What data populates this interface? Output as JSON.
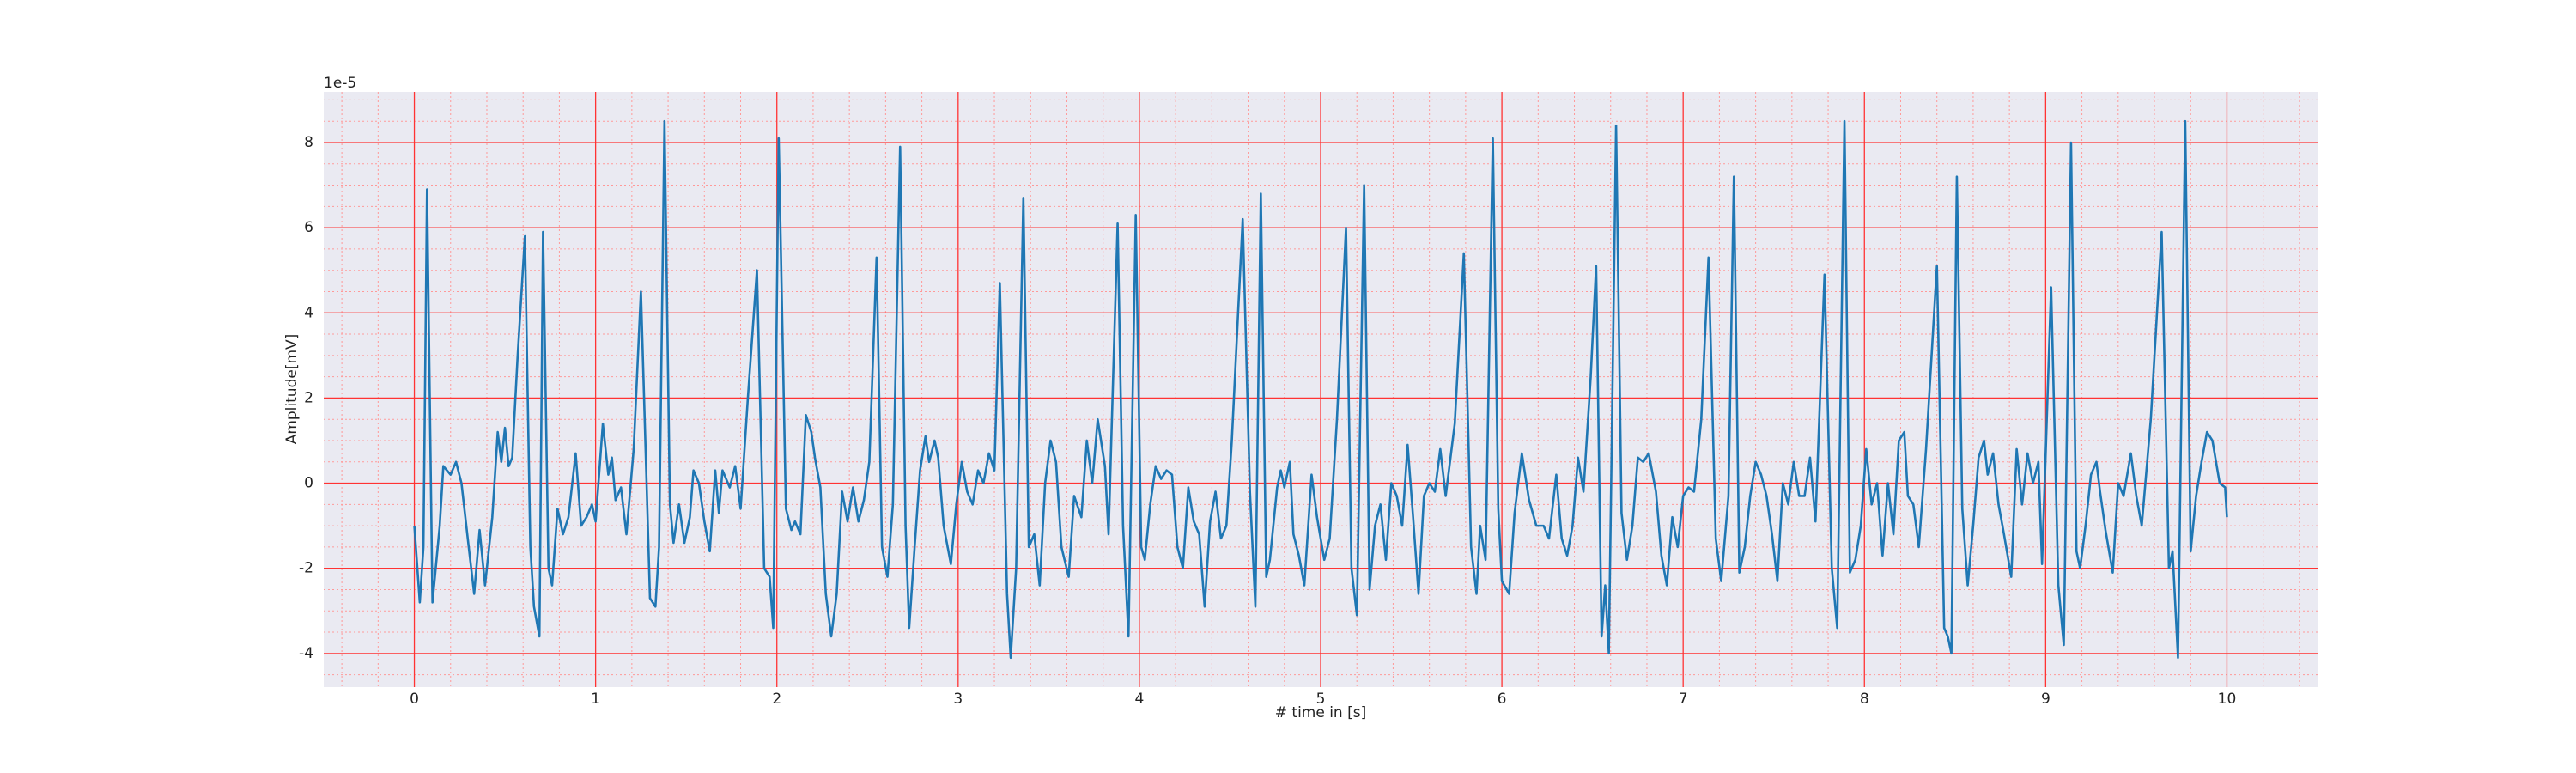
{
  "chart_data": {
    "type": "line",
    "y_label": "Amplitude[mV]",
    "x_label": "# time in [s]",
    "y_offset_label": "1e-5",
    "xlim": [
      -0.5,
      10.5
    ],
    "ylim": [
      -4.79,
      9.19
    ],
    "xticks": [
      0,
      1,
      2,
      3,
      4,
      5,
      6,
      7,
      8,
      9,
      10
    ],
    "yticks": [
      -4,
      -2,
      0,
      2,
      4,
      6,
      8
    ],
    "xminorticks": [
      -0.4,
      -0.2,
      0.2,
      0.4,
      0.6,
      0.8,
      1.2,
      1.4,
      1.6,
      1.8,
      2.2,
      2.4,
      2.6,
      2.8,
      3.2,
      3.4,
      3.6,
      3.8,
      4.2,
      4.4,
      4.6,
      4.8,
      5.2,
      5.4,
      5.6,
      5.8,
      6.2,
      6.4,
      6.6,
      6.8,
      7.2,
      7.4,
      7.6,
      7.8,
      8.2,
      8.4,
      8.6,
      8.8,
      9.2,
      9.4,
      9.6,
      9.8,
      10.2,
      10.4
    ],
    "yminorticks": [
      -4.5,
      -3.5,
      -3,
      -2.5,
      -1.5,
      -1,
      -0.5,
      0.5,
      1,
      1.5,
      2.5,
      3,
      3.5,
      4.5,
      5,
      5.5,
      6.5,
      7,
      7.5,
      8.5,
      9
    ],
    "grid": true,
    "grid_color": "#ff3333",
    "minor_grid_color": "#ff9999",
    "background": "#eaeaf2",
    "x": [
      0.0,
      0.03,
      0.05,
      0.07,
      0.1,
      0.14,
      0.16,
      0.2,
      0.23,
      0.26,
      0.3,
      0.33,
      0.36,
      0.39,
      0.43,
      0.46,
      0.48,
      0.5,
      0.52,
      0.54,
      0.57,
      0.61,
      0.64,
      0.66,
      0.69,
      0.71,
      0.74,
      0.76,
      0.79,
      0.82,
      0.85,
      0.89,
      0.92,
      0.95,
      0.98,
      1.0,
      1.04,
      1.07,
      1.09,
      1.11,
      1.14,
      1.17,
      1.21,
      1.25,
      1.3,
      1.33,
      1.35,
      1.38,
      1.41,
      1.43,
      1.46,
      1.49,
      1.52,
      1.54,
      1.57,
      1.6,
      1.63,
      1.66,
      1.68,
      1.7,
      1.74,
      1.77,
      1.8,
      1.84,
      1.89,
      1.93,
      1.96,
      1.98,
      2.01,
      2.05,
      2.08,
      2.1,
      2.13,
      2.16,
      2.19,
      2.21,
      2.24,
      2.27,
      2.3,
      2.33,
      2.36,
      2.39,
      2.42,
      2.45,
      2.48,
      2.51,
      2.55,
      2.58,
      2.61,
      2.64,
      2.68,
      2.71,
      2.73,
      2.76,
      2.79,
      2.82,
      2.84,
      2.87,
      2.89,
      2.92,
      2.96,
      2.99,
      3.02,
      3.05,
      3.08,
      3.11,
      3.14,
      3.17,
      3.2,
      3.23,
      3.27,
      3.29,
      3.32,
      3.36,
      3.39,
      3.42,
      3.45,
      3.48,
      3.51,
      3.54,
      3.57,
      3.61,
      3.64,
      3.68,
      3.71,
      3.74,
      3.77,
      3.81,
      3.83,
      3.88,
      3.91,
      3.94,
      3.98,
      4.01,
      4.03,
      4.06,
      4.09,
      4.12,
      4.15,
      4.18,
      4.21,
      4.24,
      4.27,
      4.3,
      4.33,
      4.36,
      4.39,
      4.42,
      4.45,
      4.48,
      4.51,
      4.57,
      4.61,
      4.64,
      4.67,
      4.7,
      4.72,
      4.76,
      4.78,
      4.8,
      4.83,
      4.85,
      4.88,
      4.91,
      4.95,
      4.98,
      5.02,
      5.05,
      5.09,
      5.14,
      5.17,
      5.2,
      5.24,
      5.27,
      5.3,
      5.33,
      5.36,
      5.39,
      5.42,
      5.45,
      5.48,
      5.51,
      5.54,
      5.57,
      5.6,
      5.63,
      5.66,
      5.69,
      5.74,
      5.79,
      5.83,
      5.86,
      5.88,
      5.91,
      5.95,
      5.98,
      6.0,
      6.04,
      6.07,
      6.11,
      6.15,
      6.19,
      6.23,
      6.26,
      6.3,
      6.33,
      6.36,
      6.39,
      6.42,
      6.45,
      6.49,
      6.52,
      6.55,
      6.57,
      6.59,
      6.63,
      6.66,
      6.69,
      6.72,
      6.75,
      6.78,
      6.81,
      6.85,
      6.88,
      6.91,
      6.94,
      6.97,
      7.0,
      7.03,
      7.06,
      7.1,
      7.14,
      7.18,
      7.21,
      7.25,
      7.28,
      7.31,
      7.34,
      7.37,
      7.4,
      7.43,
      7.46,
      7.49,
      7.52,
      7.55,
      7.58,
      7.61,
      7.64,
      7.67,
      7.7,
      7.73,
      7.78,
      7.82,
      7.85,
      7.89,
      7.92,
      7.95,
      7.98,
      8.01,
      8.04,
      8.07,
      8.1,
      8.13,
      8.16,
      8.19,
      8.22,
      8.24,
      8.27,
      8.3,
      8.34,
      8.4,
      8.44,
      8.46,
      8.48,
      8.51,
      8.54,
      8.57,
      8.6,
      8.63,
      8.66,
      8.68,
      8.71,
      8.74,
      8.77,
      8.81,
      8.84,
      8.87,
      8.9,
      8.93,
      8.96,
      8.98,
      9.03,
      9.07,
      9.1,
      9.14,
      9.17,
      9.19,
      9.22,
      9.25,
      9.28,
      9.3,
      9.33,
      9.37,
      9.4,
      9.43,
      9.47,
      9.5,
      9.53,
      9.58,
      9.64,
      9.68,
      9.7,
      9.73,
      9.77,
      9.8,
      9.83,
      9.86,
      9.89,
      9.92,
      9.96,
      9.99,
      10.0
    ],
    "series": [
      {
        "color": "#1f77b4",
        "values": [
          -1.0,
          -2.8,
          -1.5,
          6.9,
          -2.8,
          -1.0,
          0.4,
          0.2,
          0.5,
          0.0,
          -1.5,
          -2.6,
          -1.1,
          -2.4,
          -0.8,
          1.2,
          0.5,
          1.3,
          0.4,
          0.6,
          3.0,
          5.8,
          -1.5,
          -2.9,
          -3.6,
          5.9,
          -2.0,
          -2.4,
          -0.6,
          -1.2,
          -0.8,
          0.7,
          -1.0,
          -0.8,
          -0.5,
          -0.9,
          1.4,
          0.2,
          0.6,
          -0.4,
          -0.1,
          -1.2,
          0.8,
          4.5,
          -2.7,
          -2.9,
          -1.5,
          8.5,
          -0.5,
          -1.4,
          -0.5,
          -1.4,
          -0.8,
          0.3,
          0.0,
          -0.9,
          -1.6,
          0.3,
          -0.7,
          0.3,
          -0.1,
          0.4,
          -0.6,
          2.0,
          5.0,
          -2.0,
          -2.2,
          -3.4,
          8.1,
          -0.6,
          -1.1,
          -0.9,
          -1.2,
          1.6,
          1.2,
          0.6,
          -0.1,
          -2.6,
          -3.6,
          -2.6,
          -0.2,
          -0.9,
          -0.1,
          -0.9,
          -0.4,
          0.5,
          5.3,
          -1.5,
          -2.2,
          -0.5,
          7.9,
          -1.0,
          -3.4,
          -1.5,
          0.3,
          1.1,
          0.5,
          1.0,
          0.6,
          -1.0,
          -1.9,
          -0.5,
          0.5,
          -0.2,
          -0.5,
          0.3,
          0.0,
          0.7,
          0.3,
          4.7,
          -2.6,
          -4.1,
          -2.0,
          6.7,
          -1.5,
          -1.2,
          -2.4,
          0.0,
          1.0,
          0.5,
          -1.5,
          -2.2,
          -0.3,
          -0.8,
          1.0,
          0.0,
          1.5,
          0.4,
          -1.2,
          6.1,
          -1.0,
          -3.6,
          6.3,
          -1.5,
          -1.8,
          -0.5,
          0.4,
          0.1,
          0.3,
          0.2,
          -1.5,
          -2.0,
          -0.1,
          -0.9,
          -1.2,
          -2.9,
          -0.9,
          -0.2,
          -1.3,
          -1.0,
          1.0,
          6.2,
          -0.2,
          -2.9,
          6.8,
          -2.2,
          -1.8,
          -0.1,
          0.3,
          -0.1,
          0.5,
          -1.2,
          -1.7,
          -2.4,
          0.2,
          -0.8,
          -1.8,
          -1.3,
          1.5,
          6.0,
          -2.0,
          -3.1,
          7.0,
          -2.5,
          -1.0,
          -0.5,
          -1.8,
          0.0,
          -0.3,
          -1.0,
          0.9,
          -0.8,
          -2.6,
          -0.3,
          0.0,
          -0.2,
          0.8,
          -0.3,
          1.4,
          5.4,
          -1.5,
          -2.6,
          -1.0,
          -1.8,
          8.1,
          -0.6,
          -2.3,
          -2.6,
          -0.7,
          0.7,
          -0.4,
          -1.0,
          -1.0,
          -1.3,
          0.2,
          -1.3,
          -1.7,
          -1.0,
          0.6,
          -0.2,
          2.5,
          5.1,
          -3.6,
          -2.4,
          -4.0,
          8.4,
          -0.7,
          -1.8,
          -1.0,
          0.6,
          0.5,
          0.7,
          -0.2,
          -1.7,
          -2.4,
          -0.8,
          -1.5,
          -0.3,
          -0.1,
          -0.2,
          1.5,
          5.3,
          -1.3,
          -2.3,
          -0.3,
          7.2,
          -2.1,
          -1.5,
          -0.3,
          0.5,
          0.2,
          -0.3,
          -1.2,
          -2.3,
          0.0,
          -0.5,
          0.5,
          -0.3,
          -0.3,
          0.6,
          -0.9,
          4.9,
          -2.0,
          -3.4,
          8.5,
          -2.1,
          -1.8,
          -1.0,
          0.8,
          -0.5,
          0.0,
          -1.7,
          0.0,
          -1.2,
          1.0,
          1.2,
          -0.3,
          -0.5,
          -1.5,
          0.8,
          5.1,
          -3.4,
          -3.6,
          -4.0,
          7.2,
          -0.6,
          -2.4,
          -1.0,
          0.6,
          1.0,
          0.2,
          0.7,
          -0.5,
          -1.2,
          -2.2,
          0.8,
          -0.5,
          0.7,
          0.0,
          0.5,
          -1.9,
          4.6,
          -2.4,
          -3.8,
          8.0,
          -1.6,
          -2.0,
          -1.0,
          0.2,
          0.5,
          -0.2,
          -1.1,
          -2.1,
          0.0,
          -0.3,
          0.7,
          -0.3,
          -1.0,
          1.5,
          5.9,
          -2.0,
          -1.6,
          -4.1,
          8.5,
          -1.6,
          -0.3,
          0.5,
          1.2,
          1.0,
          0.0,
          -0.1,
          -0.8
        ]
      }
    ]
  }
}
